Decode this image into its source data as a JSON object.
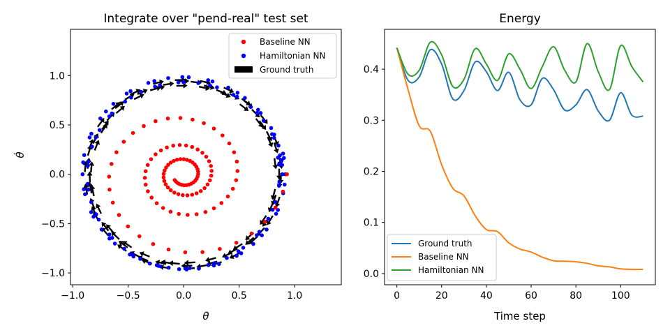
{
  "figure": {
    "left_title": "Integrate over \"pend-real\" test set",
    "right_title": "Energy"
  },
  "colors": {
    "ground_truth": "#1f77b4",
    "baseline": "#ff7f0e",
    "hamiltonian": "#2ca02c",
    "baseline_points": "#ff0000",
    "hamiltonian_points": "#0000ff",
    "arrows": "#000000"
  },
  "chart_data": [
    {
      "type": "scatter",
      "title": "Integrate over \"pend-real\" test set",
      "xlabel": "θ",
      "ylabel": "θ̇",
      "xlim": [
        -1.02,
        1.42
      ],
      "ylim": [
        -1.12,
        1.47
      ],
      "x_ticks": [
        -1.0,
        -0.5,
        0.0,
        0.5,
        1.0
      ],
      "x_tick_labels": [
        "−1.0",
        "−0.5",
        "0.0",
        "0.5",
        "1.0"
      ],
      "y_ticks": [
        -1.0,
        -0.5,
        0.0,
        0.5,
        1.0
      ],
      "y_tick_labels": [
        "−1.0",
        "−0.5",
        "0.0",
        "0.5",
        "1.0"
      ],
      "grid": false,
      "legend_position": "upper right",
      "legend": [
        "Baseline NN",
        "Hamiltonian NN",
        "Ground truth"
      ],
      "series": [
        {
          "name": "Baseline NN",
          "kind": "inward spiral of points",
          "spiral": {
            "start_radius": 0.93,
            "end_radius": 0.1,
            "revolutions": 3.4,
            "points": 111
          }
        },
        {
          "name": "Hamiltonian NN",
          "kind": "closed orbit of points",
          "orbit": {
            "radius_theta": 0.89,
            "radius_thetadot": 0.96,
            "points": 111
          }
        },
        {
          "name": "Ground truth",
          "kind": "field of short arrows along the orbit",
          "orbit": {
            "radius_theta": 0.86,
            "radius_thetadot": 0.93,
            "arrows": 95
          }
        }
      ]
    },
    {
      "type": "line",
      "title": "Energy",
      "xlabel": "Time step",
      "ylabel": "",
      "xlim": [
        -5.5,
        115.5
      ],
      "ylim": [
        -0.022,
        0.478
      ],
      "x_ticks": [
        0,
        20,
        40,
        60,
        80,
        100
      ],
      "y_ticks": [
        0.0,
        0.1,
        0.2,
        0.3,
        0.4
      ],
      "y_tick_labels": [
        "0.0",
        "0.1",
        "0.2",
        "0.3",
        "0.4"
      ],
      "grid": false,
      "legend_position": "lower left",
      "x": [
        0,
        5,
        10,
        15,
        20,
        25,
        30,
        35,
        40,
        45,
        50,
        55,
        60,
        65,
        70,
        75,
        80,
        85,
        90,
        95,
        100,
        105,
        110
      ],
      "series": [
        {
          "name": "Ground truth",
          "values": [
            0.442,
            0.378,
            0.385,
            0.438,
            0.41,
            0.342,
            0.358,
            0.414,
            0.395,
            0.358,
            0.394,
            0.34,
            0.33,
            0.382,
            0.36,
            0.32,
            0.33,
            0.36,
            0.318,
            0.3,
            0.354,
            0.31,
            0.308
          ]
        },
        {
          "name": "Baseline NN",
          "values": [
            0.442,
            0.36,
            0.289,
            0.278,
            0.213,
            0.167,
            0.152,
            0.113,
            0.086,
            0.082,
            0.06,
            0.048,
            0.042,
            0.032,
            0.025,
            0.024,
            0.023,
            0.02,
            0.015,
            0.013,
            0.009,
            0.008,
            0.008
          ]
        },
        {
          "name": "Hamiltonian NN",
          "values": [
            0.442,
            0.39,
            0.398,
            0.453,
            0.428,
            0.366,
            0.38,
            0.44,
            0.41,
            0.378,
            0.43,
            0.4,
            0.362,
            0.405,
            0.444,
            0.398,
            0.375,
            0.45,
            0.395,
            0.36,
            0.446,
            0.405,
            0.375
          ]
        }
      ]
    }
  ]
}
